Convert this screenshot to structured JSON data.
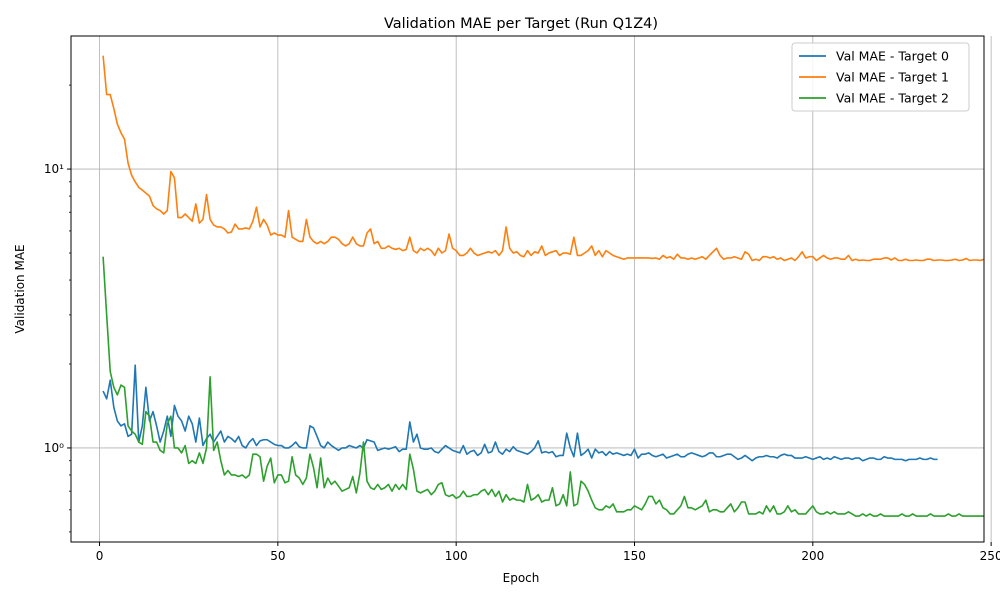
{
  "chart_data": {
    "type": "line",
    "title": "Validation MAE per Target (Run Q1Z4)",
    "xlabel": "Epoch",
    "ylabel": "Validation MAE",
    "xlim": [
      -8,
      248
    ],
    "ylim": [
      0.46,
      30
    ],
    "yscale": "log",
    "grid": true,
    "legend_position": "top-right",
    "x_ticks": [
      0,
      50,
      100,
      150,
      200,
      250
    ],
    "y_ticks": [
      {
        "value": 1,
        "label": "10⁰"
      },
      {
        "value": 10,
        "label": "10¹"
      }
    ],
    "x_start": 1,
    "series": [
      {
        "name": "Val MAE - Target 0",
        "color": "#1f77b4",
        "values": [
          1.6,
          1.5,
          1.75,
          1.4,
          1.25,
          1.2,
          1.22,
          1.1,
          1.12,
          1.98,
          1.05,
          1.2,
          1.65,
          1.25,
          1.35,
          1.2,
          1.05,
          1.15,
          1.3,
          1.1,
          1.42,
          1.3,
          1.25,
          1.15,
          1.3,
          1.22,
          1.05,
          1.28,
          1.02,
          1.08,
          1.12,
          1.05,
          1.1,
          1.15,
          1.05,
          1.1,
          1.08,
          1.05,
          1.1,
          1.02,
          1.0,
          1.05,
          1.08,
          1.02,
          1.06,
          1.07,
          1.07,
          1.05,
          1.03,
          1.02,
          1.02,
          1.0,
          1.0,
          1.02,
          1.05,
          1.01,
          1.0,
          1.0,
          1.2,
          1.18,
          1.1,
          1.02,
          1.0,
          1.05,
          1.02,
          1.0,
          0.98,
          1.0,
          1.0,
          1.02,
          1.01,
          1.0,
          1.02,
          1.0,
          1.07,
          1.06,
          1.05,
          0.98,
          0.99,
          1.0,
          0.99,
          1.0,
          1.01,
          0.97,
          0.99,
          0.99,
          1.24,
          1.05,
          1.12,
          1.0,
          0.99,
          0.99,
          1.0,
          0.97,
          0.96,
          0.99,
          1.02,
          1.0,
          0.98,
          0.97,
          0.96,
          1.02,
          0.95,
          0.97,
          0.98,
          0.94,
          0.96,
          1.03,
          0.96,
          0.97,
          1.05,
          0.97,
          0.95,
          0.99,
          0.97,
          1.01,
          0.98,
          0.97,
          0.96,
          0.95,
          0.97,
          1.0,
          1.06,
          0.96,
          0.97,
          0.96,
          0.97,
          0.93,
          0.94,
          0.94,
          1.13,
          1.0,
          0.93,
          1.13,
          0.94,
          0.96,
          0.99,
          0.92,
          0.99,
          0.96,
          0.97,
          0.94,
          0.97,
          0.95,
          0.96,
          0.95,
          0.94,
          0.95,
          0.94,
          0.99,
          0.92,
          0.95,
          0.95,
          0.96,
          0.94,
          0.93,
          0.94,
          0.95,
          0.92,
          0.93,
          0.94,
          0.95,
          0.93,
          0.93,
          0.95,
          0.96,
          0.95,
          0.94,
          0.93,
          0.94,
          0.96,
          0.96,
          0.93,
          0.93,
          0.94,
          0.95,
          0.95,
          0.93,
          0.91,
          0.92,
          0.94,
          0.92,
          0.9,
          0.92,
          0.93,
          0.93,
          0.94,
          0.93,
          0.93,
          0.92,
          0.94,
          0.95,
          0.94,
          0.94,
          0.92,
          0.92,
          0.92,
          0.93,
          0.92,
          0.91,
          0.92,
          0.93,
          0.91,
          0.92,
          0.91,
          0.93,
          0.92,
          0.91,
          0.92,
          0.92,
          0.91,
          0.92,
          0.92,
          0.9,
          0.91,
          0.92,
          0.92,
          0.91,
          0.91,
          0.93,
          0.92,
          0.92,
          0.91,
          0.91,
          0.91,
          0.9,
          0.91,
          0.91,
          0.91,
          0.92,
          0.91,
          0.91,
          0.92,
          0.91,
          0.91
        ]
      },
      {
        "name": "Val MAE - Target 1",
        "color": "#ff7f0e",
        "values": [
          25.5,
          18.5,
          18.5,
          16.5,
          14.5,
          13.5,
          12.8,
          10.5,
          9.5,
          9.0,
          8.6,
          8.4,
          8.2,
          8.0,
          7.4,
          7.2,
          7.1,
          6.9,
          7.1,
          9.8,
          9.3,
          6.7,
          6.7,
          6.9,
          6.7,
          6.5,
          7.5,
          6.4,
          6.6,
          8.1,
          6.6,
          6.3,
          6.2,
          6.2,
          6.1,
          5.9,
          5.95,
          6.35,
          6.1,
          6.1,
          6.15,
          6.1,
          6.5,
          7.3,
          6.2,
          6.6,
          6.3,
          5.8,
          5.9,
          5.8,
          5.8,
          5.7,
          7.1,
          5.7,
          5.6,
          5.5,
          5.5,
          6.6,
          5.7,
          5.5,
          5.4,
          5.5,
          5.4,
          5.5,
          5.7,
          5.7,
          5.6,
          5.4,
          5.3,
          5.4,
          5.7,
          5.4,
          5.3,
          5.3,
          5.9,
          6.1,
          5.4,
          5.5,
          5.2,
          5.2,
          5.3,
          5.2,
          5.15,
          5.2,
          5.1,
          5.15,
          5.7,
          5.1,
          5.0,
          5.2,
          5.1,
          5.2,
          5.1,
          4.9,
          5.2,
          5.0,
          5.1,
          5.85,
          5.2,
          5.1,
          4.9,
          4.9,
          5.0,
          5.2,
          5.0,
          4.9,
          4.95,
          5.0,
          5.05,
          5.0,
          5.1,
          4.9,
          5.1,
          6.2,
          5.2,
          5.0,
          5.05,
          4.9,
          4.85,
          5.1,
          4.9,
          5.05,
          5.0,
          5.3,
          4.9,
          5.0,
          5.05,
          5.1,
          4.9,
          5.0,
          5.0,
          4.95,
          5.7,
          4.9,
          4.9,
          5.0,
          5.1,
          5.3,
          4.9,
          5.1,
          4.85,
          5.1,
          5.0,
          4.9,
          4.85,
          4.8,
          4.75,
          4.8,
          4.8,
          4.8,
          4.8,
          4.8,
          4.8,
          4.8,
          4.78,
          4.8,
          4.75,
          4.9,
          4.8,
          4.85,
          4.75,
          4.95,
          4.8,
          4.8,
          4.75,
          4.8,
          4.75,
          4.8,
          4.85,
          4.75,
          4.9,
          5.05,
          5.2,
          4.9,
          4.75,
          4.8,
          4.8,
          4.85,
          4.8,
          4.75,
          5.05,
          4.95,
          4.7,
          4.75,
          4.7,
          4.85,
          4.85,
          4.8,
          4.85,
          4.75,
          4.8,
          4.7,
          4.75,
          4.8,
          4.7,
          4.85,
          5.05,
          4.8,
          4.85,
          4.85,
          4.7,
          4.8,
          4.9,
          4.8,
          4.75,
          4.8,
          4.8,
          4.75,
          4.75,
          4.9,
          4.7,
          4.75,
          4.7,
          4.72,
          4.7,
          4.7,
          4.75,
          4.75,
          4.75,
          4.8,
          4.8,
          4.72,
          4.8,
          4.7,
          4.7,
          4.75,
          4.7,
          4.7,
          4.72,
          4.7,
          4.7,
          4.75,
          4.75,
          4.7,
          4.72,
          4.72,
          4.7,
          4.7,
          4.72,
          4.75,
          4.7,
          4.72,
          4.78,
          4.7,
          4.72,
          4.72,
          4.7,
          4.75
        ]
      },
      {
        "name": "Val MAE - Target 2",
        "color": "#2ca02c",
        "values": [
          4.85,
          3.0,
          1.88,
          1.65,
          1.55,
          1.68,
          1.65,
          1.2,
          1.15,
          1.12,
          1.05,
          1.03,
          1.35,
          1.3,
          1.05,
          1.05,
          0.98,
          0.96,
          1.22,
          1.3,
          1.0,
          1.0,
          0.96,
          1.02,
          0.88,
          0.9,
          0.88,
          0.96,
          0.88,
          1.0,
          1.8,
          0.98,
          1.05,
          0.9,
          0.8,
          0.83,
          0.8,
          0.8,
          0.79,
          0.8,
          0.78,
          0.8,
          0.95,
          0.95,
          0.93,
          0.76,
          0.86,
          0.92,
          0.75,
          0.8,
          0.8,
          0.75,
          0.76,
          0.93,
          0.8,
          0.78,
          0.74,
          0.78,
          0.95,
          0.85,
          0.72,
          0.92,
          0.72,
          0.78,
          0.74,
          0.76,
          0.73,
          0.7,
          0.71,
          0.72,
          0.79,
          0.69,
          0.81,
          1.05,
          0.76,
          0.72,
          0.71,
          0.74,
          0.71,
          0.72,
          0.74,
          0.7,
          0.74,
          0.71,
          0.74,
          0.71,
          0.95,
          0.84,
          0.7,
          0.69,
          0.7,
          0.71,
          0.68,
          0.7,
          0.74,
          0.75,
          0.68,
          0.67,
          0.68,
          0.66,
          0.67,
          0.7,
          0.67,
          0.67,
          0.68,
          0.68,
          0.7,
          0.71,
          0.68,
          0.71,
          0.67,
          0.7,
          0.64,
          0.68,
          0.65,
          0.66,
          0.65,
          0.65,
          0.64,
          0.74,
          0.65,
          0.66,
          0.68,
          0.64,
          0.65,
          0.65,
          0.72,
          0.62,
          0.63,
          0.68,
          0.62,
          0.82,
          0.62,
          0.63,
          0.76,
          0.74,
          0.7,
          0.65,
          0.61,
          0.6,
          0.6,
          0.62,
          0.61,
          0.63,
          0.59,
          0.59,
          0.59,
          0.6,
          0.6,
          0.62,
          0.61,
          0.6,
          0.63,
          0.67,
          0.67,
          0.63,
          0.65,
          0.61,
          0.6,
          0.58,
          0.58,
          0.6,
          0.62,
          0.67,
          0.61,
          0.61,
          0.6,
          0.61,
          0.62,
          0.65,
          0.59,
          0.6,
          0.6,
          0.59,
          0.59,
          0.61,
          0.63,
          0.59,
          0.61,
          0.64,
          0.64,
          0.58,
          0.58,
          0.58,
          0.59,
          0.58,
          0.62,
          0.59,
          0.62,
          0.58,
          0.58,
          0.59,
          0.62,
          0.59,
          0.6,
          0.58,
          0.58,
          0.58,
          0.6,
          0.62,
          0.59,
          0.58,
          0.58,
          0.59,
          0.58,
          0.59,
          0.58,
          0.58,
          0.58,
          0.59,
          0.58,
          0.57,
          0.57,
          0.58,
          0.57,
          0.58,
          0.57,
          0.57,
          0.58,
          0.57,
          0.57,
          0.57,
          0.57,
          0.57,
          0.58,
          0.57,
          0.57,
          0.58,
          0.57,
          0.57,
          0.57,
          0.57,
          0.58,
          0.57,
          0.57,
          0.57,
          0.57,
          0.58,
          0.57,
          0.57,
          0.58,
          0.57,
          0.57,
          0.57,
          0.57,
          0.57,
          0.57,
          0.57
        ]
      }
    ]
  }
}
